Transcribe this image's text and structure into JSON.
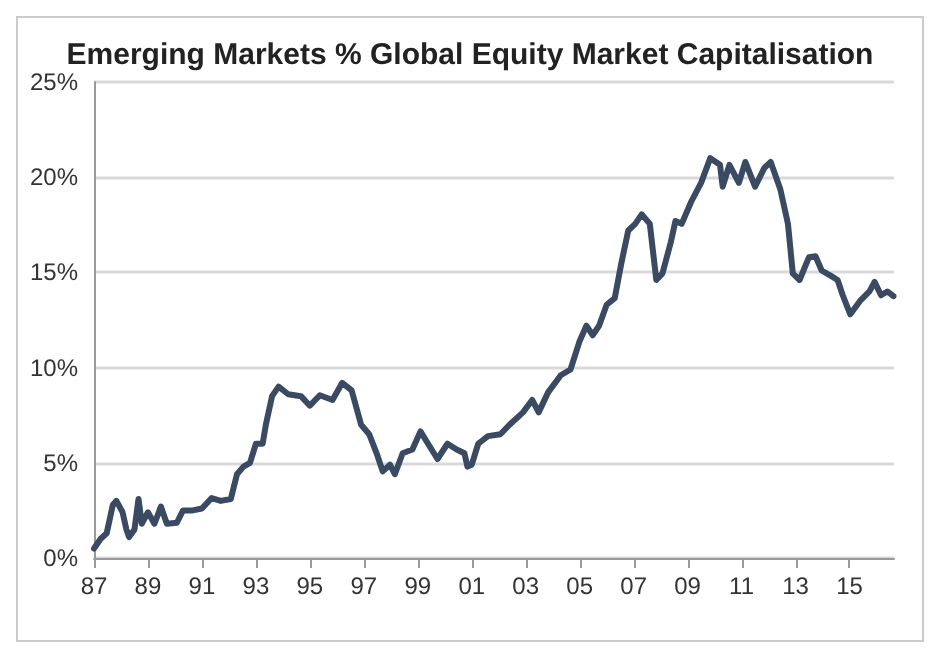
{
  "chart_data": {
    "type": "line",
    "title": "Emerging Markets % Global Equity Market Capitalisation",
    "x": [
      1987.0,
      1987.24,
      1987.47,
      1987.7,
      1987.83,
      1988.06,
      1988.2,
      1988.3,
      1988.5,
      1988.65,
      1988.77,
      1989.0,
      1989.24,
      1989.48,
      1989.7,
      1990.07,
      1990.3,
      1990.66,
      1991.0,
      1991.36,
      1991.7,
      1992.07,
      1992.3,
      1992.54,
      1992.78,
      1993.0,
      1993.25,
      1993.37,
      1993.6,
      1993.84,
      1994.2,
      1994.67,
      1995.0,
      1995.37,
      1995.84,
      1996.2,
      1996.55,
      1996.9,
      1997.2,
      1997.5,
      1997.7,
      1997.97,
      1998.15,
      1998.44,
      1998.8,
      1999.1,
      1999.38,
      1999.73,
      2000.1,
      2000.44,
      2000.73,
      2000.84,
      2001.0,
      2001.24,
      2001.6,
      2002.06,
      2002.4,
      2002.9,
      2003.24,
      2003.48,
      2003.83,
      2004.3,
      2004.66,
      2005.0,
      2005.25,
      2005.48,
      2005.72,
      2006.0,
      2006.3,
      2006.54,
      2006.8,
      2007.06,
      2007.3,
      2007.6,
      2007.84,
      2008.07,
      2008.38,
      2008.55,
      2008.78,
      2009.13,
      2009.5,
      2009.84,
      2010.2,
      2010.3,
      2010.55,
      2010.9,
      2011.14,
      2011.5,
      2011.85,
      2012.08,
      2012.44,
      2012.72,
      2012.9,
      2013.15,
      2013.5,
      2013.74,
      2013.97,
      2014.33,
      2014.56,
      2014.75,
      2015.03,
      2015.39,
      2015.74,
      2015.93,
      2016.17,
      2016.4,
      2016.63
    ],
    "series": [
      {
        "color": "#3b4a63",
        "values": [
          0.5,
          1.0,
          1.3,
          2.8,
          3.0,
          2.4,
          1.5,
          1.1,
          1.5,
          3.1,
          1.8,
          2.4,
          1.8,
          2.7,
          1.8,
          1.85,
          2.5,
          2.5,
          2.6,
          3.15,
          3.0,
          3.1,
          4.4,
          4.8,
          5.0,
          6.0,
          6.0,
          7.0,
          8.5,
          9.0,
          8.6,
          8.5,
          8.0,
          8.55,
          8.3,
          9.2,
          8.8,
          7.0,
          6.5,
          5.4,
          4.55,
          4.9,
          4.4,
          5.5,
          5.7,
          6.65,
          6.0,
          5.2,
          6.0,
          5.7,
          5.5,
          4.8,
          4.9,
          6.0,
          6.4,
          6.5,
          7.0,
          7.65,
          8.3,
          7.65,
          8.7,
          9.6,
          9.9,
          11.4,
          12.2,
          11.7,
          12.2,
          13.3,
          13.65,
          15.45,
          17.2,
          17.55,
          18.05,
          17.55,
          14.6,
          14.95,
          16.6,
          17.7,
          17.55,
          18.7,
          19.7,
          21.0,
          20.65,
          19.5,
          20.65,
          19.7,
          20.8,
          19.5,
          20.5,
          20.8,
          19.35,
          17.55,
          14.95,
          14.6,
          15.8,
          15.85,
          15.1,
          14.8,
          14.6,
          13.8,
          12.8,
          13.5,
          14.0,
          14.5,
          13.8,
          14.0,
          13.75
        ]
      }
    ],
    "xlim": [
      1987,
      2016.65
    ],
    "xticks": [
      {
        "value": 1987,
        "label": "87"
      },
      {
        "value": 1989,
        "label": "89"
      },
      {
        "value": 1991,
        "label": "91"
      },
      {
        "value": 1993,
        "label": "93"
      },
      {
        "value": 1995,
        "label": "95"
      },
      {
        "value": 1997,
        "label": "97"
      },
      {
        "value": 1999,
        "label": "99"
      },
      {
        "value": 2001,
        "label": "01"
      },
      {
        "value": 2003,
        "label": "03"
      },
      {
        "value": 2005,
        "label": "05"
      },
      {
        "value": 2007,
        "label": "07"
      },
      {
        "value": 2009,
        "label": "09"
      },
      {
        "value": 2011,
        "label": "11"
      },
      {
        "value": 2013,
        "label": "13"
      },
      {
        "value": 2015,
        "label": "15"
      }
    ],
    "ylim": [
      0,
      25
    ],
    "yticks": [
      {
        "value": 0,
        "label": "0%"
      },
      {
        "value": 5,
        "label": "5%"
      },
      {
        "value": 10,
        "label": "10%"
      },
      {
        "value": 15,
        "label": "15%"
      },
      {
        "value": 20,
        "label": "20%"
      },
      {
        "value": 25,
        "label": "25%"
      }
    ],
    "grid": "y",
    "marker": "none",
    "line_style": "solid"
  }
}
